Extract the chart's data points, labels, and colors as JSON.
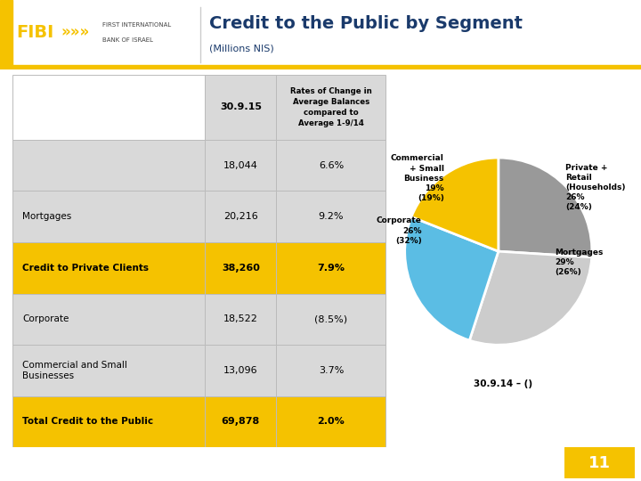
{
  "title": "Credit to the Public by Segment",
  "subtitle": "(Millions NIS)",
  "bank_name_line1": "FIRST INTERNATIONAL",
  "bank_name_line2": "BANK OF ISRAEL",
  "col1_header": "30.9.15",
  "col2_header": "Rates of Change in\nAverage Balances\ncompared to\nAverage 1-9/14",
  "rows": [
    {
      "label": "",
      "val1": "18,044",
      "val2": "6.6%",
      "bg": "#d9d9d9",
      "text_bold": false
    },
    {
      "label": "Mortgages",
      "val1": "20,216",
      "val2": "9.2%",
      "bg": "#d9d9d9",
      "text_bold": false
    },
    {
      "label": "Credit to Private Clients",
      "val1": "38,260",
      "val2": "7.9%",
      "bg": "#f5c200",
      "text_bold": true
    },
    {
      "label": "Corporate",
      "val1": "18,522",
      "val2": "(8.5%)",
      "bg": "#d9d9d9",
      "text_bold": false
    },
    {
      "label": "Commercial and Small\nBusinesses",
      "val1": "13,096",
      "val2": "3.7%",
      "bg": "#d9d9d9",
      "text_bold": false
    },
    {
      "label": "Total Credit to the Public",
      "val1": "69,878",
      "val2": "2.0%",
      "bg": "#f5c200",
      "text_bold": true
    }
  ],
  "pie_values": [
    26,
    29,
    26,
    19
  ],
  "pie_colors": [
    "#999999",
    "#cccccc",
    "#5bbde4",
    "#f5c200"
  ],
  "pie_note": "30.9.14 – ()",
  "header_color": "#d9d9d9",
  "gold_color": "#f5c200",
  "title_color": "#1a3a6b",
  "page_num": "11",
  "bg_color": "#ffffff"
}
